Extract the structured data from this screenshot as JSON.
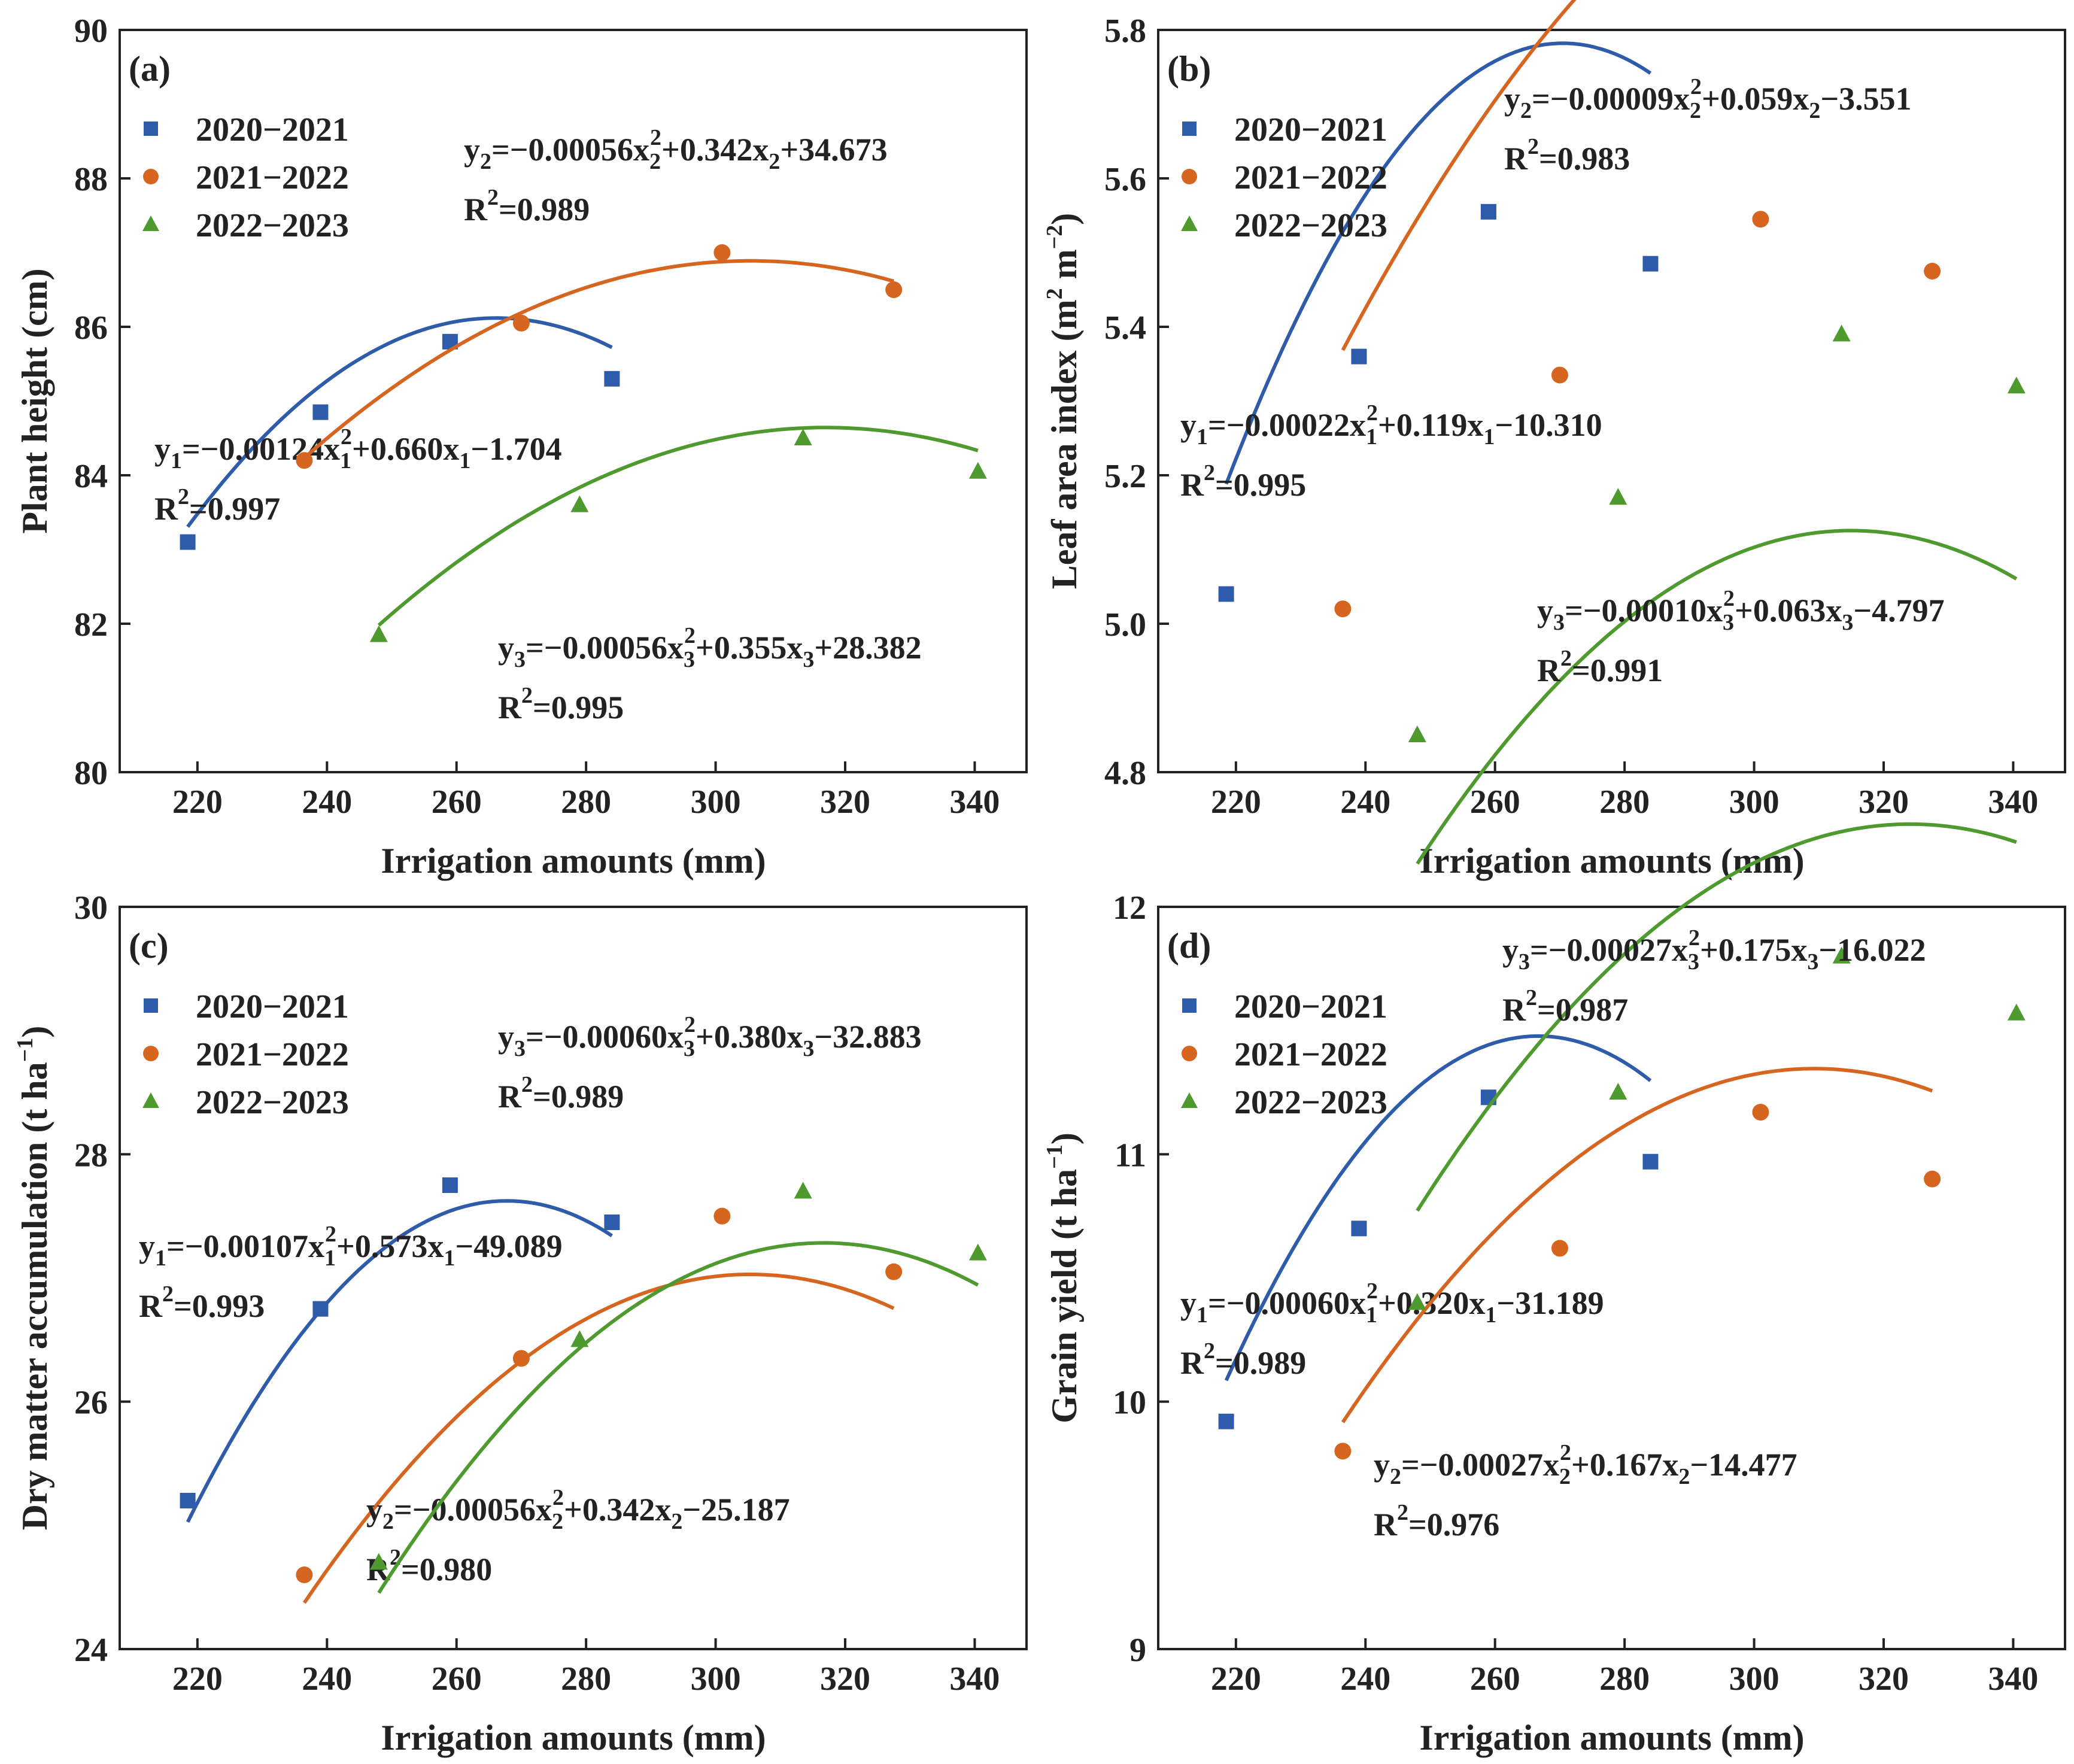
{
  "chart_data": [
    {
      "type": "scatter",
      "panel_label": "(a)",
      "xlabel": "Irrigation amounts (mm)",
      "ylabel": "Plant height (cm)",
      "xlim": [
        208,
        348
      ],
      "ylim": [
        80,
        90
      ],
      "xticks": [
        220,
        240,
        260,
        280,
        300,
        320,
        340
      ],
      "yticks": [
        80,
        82,
        84,
        86,
        88,
        90
      ],
      "ytick_labels": [
        "80",
        "82",
        "84",
        "86",
        "88",
        "90"
      ],
      "legend_position": "top-left",
      "series": [
        {
          "name": "2020−2021",
          "color": "#2e5caa",
          "marker": "square",
          "x": [
            218.5,
            239,
            259,
            284
          ],
          "y": [
            83.1,
            84.85,
            85.8,
            85.3
          ],
          "fit": {
            "a": -0.00124,
            "b": 0.66,
            "c": -1.704
          },
          "fit_range": [
            218.5,
            284
          ],
          "equation": {
            "pre": "y",
            "sub": "1",
            "mid1": "=−0.00124x",
            "sub2": "1",
            "sup": "2",
            "mid2": "+0.660x",
            "sub3": "1",
            "tail": "−1.704"
          },
          "r2": {
            "pre": "R",
            "sup": "2",
            "value": "=0.997"
          }
        },
        {
          "name": "2021−2022",
          "color": "#d6651f",
          "marker": "circle",
          "x": [
            236.5,
            270,
            301,
            327.5
          ],
          "y": [
            84.2,
            86.05,
            87.0,
            86.5
          ],
          "fit": {
            "a": -0.00056,
            "b": 0.342,
            "c": 34.673
          },
          "fit_range": [
            236.5,
            327.5
          ],
          "equation": {
            "pre": "y",
            "sub": "2",
            "mid1": "=−0.00056x",
            "sub2": "2",
            "sup": "2",
            "mid2": "+0.342x",
            "sub3": "2",
            "tail": "+34.673"
          },
          "r2": {
            "pre": "R",
            "sup": "2",
            "value": "=0.989"
          }
        },
        {
          "name": "2022−2023",
          "color": "#4e9a2e",
          "marker": "triangle",
          "x": [
            248,
            279,
            313.5,
            340.5
          ],
          "y": [
            81.85,
            83.6,
            84.5,
            84.05
          ],
          "fit": {
            "a": -0.00056,
            "b": 0.355,
            "c": 28.382
          },
          "fit_range": [
            248,
            340.5
          ],
          "equation": {
            "pre": "y",
            "sub": "3",
            "mid1": "=−0.00056x",
            "sub2": "3",
            "sup": "2",
            "mid2": "+0.355x",
            "sub3": "3",
            "tail": "+28.382"
          },
          "r2": {
            "pre": "R",
            "sup": "2",
            "value": "=0.995"
          }
        }
      ]
    },
    {
      "type": "scatter",
      "panel_label": "(b)",
      "xlabel": "Irrigation amounts (mm)",
      "ylabel": "Leaf area index (m² m⁻²)",
      "xlim": [
        208,
        348
      ],
      "ylim": [
        4.8,
        5.8
      ],
      "xticks": [
        220,
        240,
        260,
        280,
        300,
        320,
        340
      ],
      "yticks": [
        4.8,
        5.0,
        5.2,
        5.4,
        5.6,
        5.8
      ],
      "ytick_labels": [
        "4.8",
        "5.0",
        "5.2",
        "5.4",
        "5.6",
        "5.8"
      ],
      "legend_position": "top-left",
      "series": [
        {
          "name": "2020−2021",
          "color": "#2e5caa",
          "marker": "square",
          "x": [
            218.5,
            239,
            259,
            284
          ],
          "y": [
            5.04,
            5.36,
            5.555,
            5.485
          ],
          "fit": {
            "a": -0.00022,
            "b": 0.119,
            "c": -10.31
          },
          "fit_range": [
            218.5,
            284
          ],
          "equation": {
            "pre": "y",
            "sub": "1",
            "mid1": "=−0.00022x",
            "sub2": "1",
            "sup": "2",
            "mid2": "+0.119x",
            "sub3": "1",
            "tail": "−10.310"
          },
          "r2": {
            "pre": "R",
            "sup": "2",
            "value": "=0.995"
          }
        },
        {
          "name": "2021−2022",
          "color": "#d6651f",
          "marker": "circle",
          "x": [
            236.5,
            270,
            301,
            327.5
          ],
          "y": [
            5.02,
            5.335,
            5.545,
            5.475
          ],
          "fit": {
            "a": -9e-05,
            "b": 0.059,
            "c": -3.551
          },
          "fit_range": [
            236.5,
            327.5
          ],
          "equation": {
            "pre": "y",
            "sub": "2",
            "mid1": "=−0.00009x",
            "sub2": "2",
            "sup": "2",
            "mid2": "+0.059x",
            "sub3": "2",
            "tail": "−3.551"
          },
          "r2": {
            "pre": "R",
            "sup": "2",
            "value": "=0.983"
          }
        },
        {
          "name": "2022−2023",
          "color": "#4e9a2e",
          "marker": "triangle",
          "x": [
            248,
            279,
            313.5,
            340.5
          ],
          "y": [
            4.85,
            5.17,
            5.39,
            5.32
          ],
          "fit": {
            "a": -0.0001,
            "b": 0.063,
            "c": -4.797
          },
          "fit_range": [
            248,
            340.5
          ],
          "equation": {
            "pre": "y",
            "sub": "3",
            "mid1": "=−0.00010x",
            "sub2": "3",
            "sup": "2",
            "mid2": "+0.063x",
            "sub3": "3",
            "tail": "−4.797"
          },
          "r2": {
            "pre": "R",
            "sup": "2",
            "value": "=0.991"
          }
        }
      ]
    },
    {
      "type": "scatter",
      "panel_label": "(c)",
      "xlabel": "Irrigation amounts (mm)",
      "ylabel": "Dry matter accumulation (t ha⁻¹)",
      "xlim": [
        208,
        348
      ],
      "ylim": [
        24,
        30
      ],
      "xticks": [
        220,
        240,
        260,
        280,
        300,
        320,
        340
      ],
      "yticks": [
        24,
        26,
        28,
        30
      ],
      "ytick_labels": [
        "24",
        "26",
        "28",
        "30"
      ],
      "legend_position": "top-left",
      "series": [
        {
          "name": "2020−2021",
          "color": "#2e5caa",
          "marker": "square",
          "x": [
            218.5,
            239,
            259,
            284
          ],
          "y": [
            25.2,
            26.75,
            27.75,
            27.45
          ],
          "fit": {
            "a": -0.00107,
            "b": 0.573,
            "c": -49.089
          },
          "fit_range": [
            218.5,
            284
          ],
          "equation": {
            "pre": "y",
            "sub": "1",
            "mid1": "=−0.00107x",
            "sub2": "1",
            "sup": "2",
            "mid2": "+0.573x",
            "sub3": "1",
            "tail": "−49.089"
          },
          "r2": {
            "pre": "R",
            "sup": "2",
            "value": "=0.993"
          }
        },
        {
          "name": "2021−2022",
          "color": "#d6651f",
          "marker": "circle",
          "x": [
            236.5,
            270,
            301,
            327.5
          ],
          "y": [
            24.6,
            26.35,
            27.5,
            27.05
          ],
          "fit": {
            "a": -0.00056,
            "b": 0.342,
            "c": -25.187
          },
          "fit_range": [
            236.5,
            327.5
          ],
          "equation": {
            "pre": "y",
            "sub": "2",
            "mid1": "=−0.00056x",
            "sub2": "2",
            "sup": "2",
            "mid2": "+0.342x",
            "sub3": "2",
            "tail": "−25.187"
          },
          "r2": {
            "pre": "R",
            "sup": "2",
            "value": "=0.980"
          }
        },
        {
          "name": "2022−2023",
          "color": "#4e9a2e",
          "marker": "triangle",
          "x": [
            248,
            279,
            313.5,
            340.5
          ],
          "y": [
            24.7,
            26.5,
            27.7,
            27.2
          ],
          "fit": {
            "a": -0.0006,
            "b": 0.38,
            "c": -32.883
          },
          "fit_range": [
            248,
            340.5
          ],
          "equation": {
            "pre": "y",
            "sub": "3",
            "mid1": "=−0.00060x",
            "sub2": "3",
            "sup": "2",
            "mid2": "+0.380x",
            "sub3": "3",
            "tail": "−32.883"
          },
          "r2": {
            "pre": "R",
            "sup": "2",
            "value": "=0.989"
          }
        }
      ]
    },
    {
      "type": "scatter",
      "panel_label": "(d)",
      "xlabel": "Irrigation amounts (mm)",
      "ylabel": "Grain yield (t ha⁻¹)",
      "xlim": [
        208,
        348
      ],
      "ylim": [
        9,
        12
      ],
      "xticks": [
        220,
        240,
        260,
        280,
        300,
        320,
        340
      ],
      "yticks": [
        9,
        10,
        11,
        12
      ],
      "ytick_labels": [
        "9",
        "10",
        "11",
        "12"
      ],
      "legend_position": "top-left",
      "series": [
        {
          "name": "2020−2021",
          "color": "#2e5caa",
          "marker": "square",
          "x": [
            218.5,
            239,
            259,
            284
          ],
          "y": [
            9.92,
            10.7,
            11.23,
            10.97
          ],
          "fit": {
            "a": -0.0006,
            "b": 0.32,
            "c": -31.189
          },
          "fit_range": [
            218.5,
            284
          ],
          "equation": {
            "pre": "y",
            "sub": "1",
            "mid1": "=−0.00060x",
            "sub2": "1",
            "sup": "2",
            "mid2": "+0.320x",
            "sub3": "1",
            "tail": "−31.189"
          },
          "r2": {
            "pre": "R",
            "sup": "2",
            "value": "=0.989"
          }
        },
        {
          "name": "2021−2022",
          "color": "#d6651f",
          "marker": "circle",
          "x": [
            236.5,
            270,
            301,
            327.5
          ],
          "y": [
            9.8,
            10.62,
            11.17,
            10.9
          ],
          "fit": {
            "a": -0.00027,
            "b": 0.167,
            "c": -14.477
          },
          "fit_range": [
            236.5,
            327.5
          ],
          "equation": {
            "pre": "y",
            "sub": "2",
            "mid1": "=−0.00027x",
            "sub2": "2",
            "sup": "2",
            "mid2": "+0.167x",
            "sub3": "2",
            "tail": "−14.477"
          },
          "r2": {
            "pre": "R",
            "sup": "2",
            "value": "=0.976"
          }
        },
        {
          "name": "2022−2023",
          "color": "#4e9a2e",
          "marker": "triangle",
          "x": [
            248,
            279,
            313.5,
            340.5
          ],
          "y": [
            10.4,
            11.25,
            11.8,
            11.57
          ],
          "fit": {
            "a": -0.00027,
            "b": 0.175,
            "c": -16.022
          },
          "fit_range": [
            248,
            340.5
          ],
          "equation": {
            "pre": "y",
            "sub": "3",
            "mid1": "=−0.00027x",
            "sub2": "3",
            "sup": "2",
            "mid2": "+0.175x",
            "sub3": "3",
            "tail": "−16.022"
          },
          "r2": {
            "pre": "R",
            "sup": "2",
            "value": "=0.987"
          }
        }
      ]
    }
  ]
}
